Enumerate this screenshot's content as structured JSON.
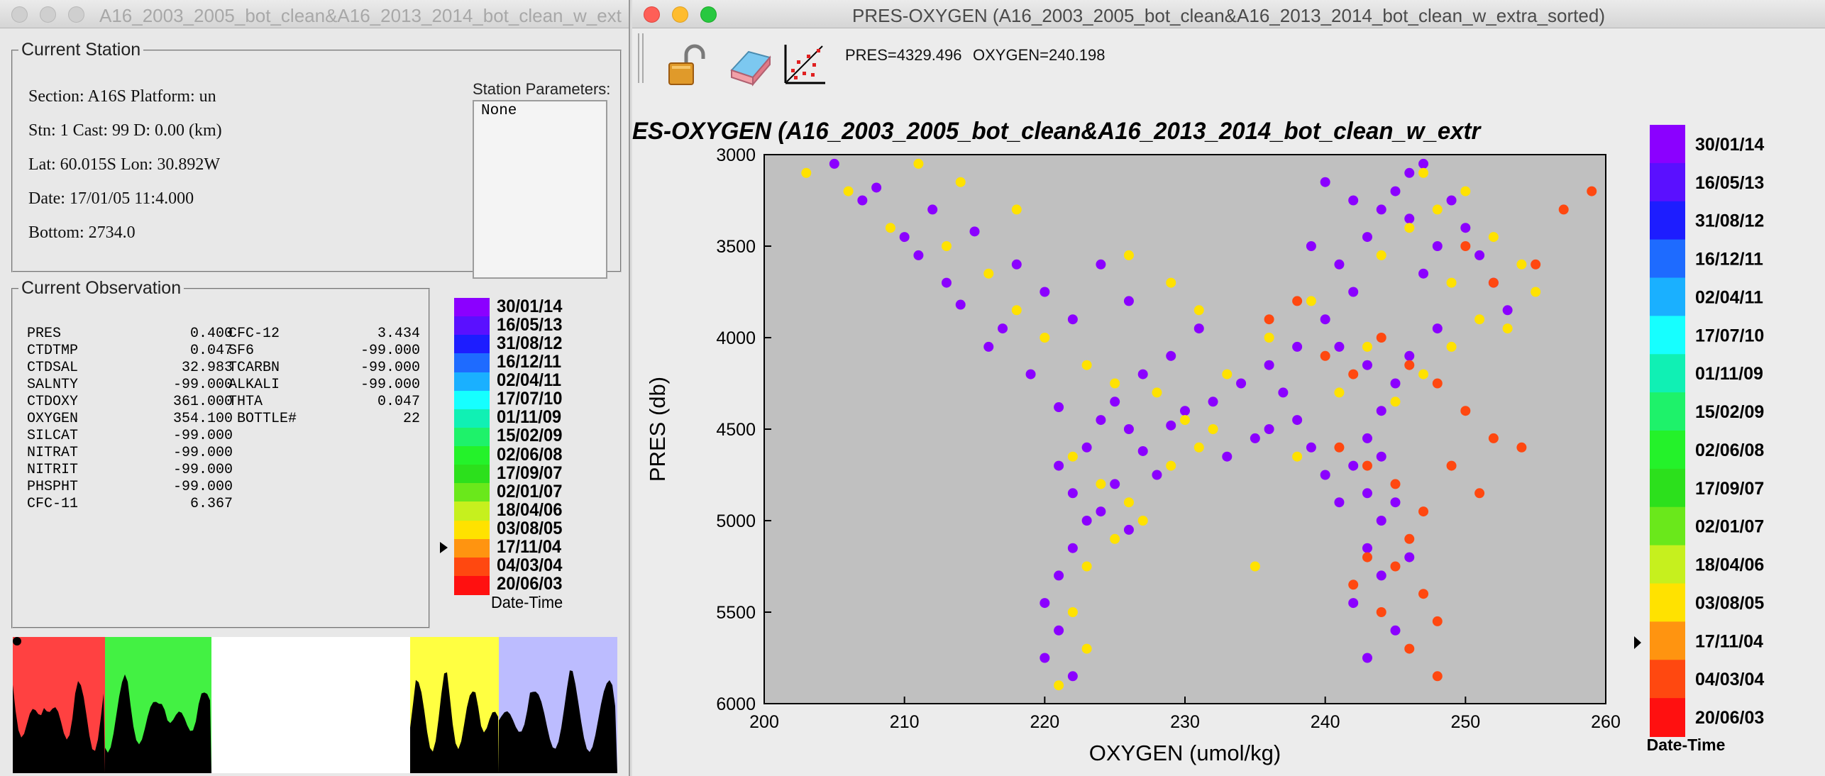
{
  "left_window": {
    "title": "A16_2003_2005_bot_clean&A16_2013_2014_bot_clean_w_ext...",
    "current_station": {
      "legend": "Current Station",
      "section_line": "Section: A16S Platform: un",
      "stn_line": "Stn: 1 Cast: 99   D: 0.00 (km)",
      "lat_line": "Lat:   60.015S Lon:    30.892W",
      "date_line": "Date: 17/01/05  11:4.000",
      "bottom_line": "Bottom: 2734.0",
      "params_label": "Station Parameters:",
      "params_value": "None"
    },
    "current_observation": {
      "legend": "Current Observation",
      "rows_left": [
        {
          "name": "PRES",
          "value": "0.400"
        },
        {
          "name": "CTDTMP",
          "value": "0.047"
        },
        {
          "name": "CTDSAL",
          "value": "32.983"
        },
        {
          "name": "SALNTY",
          "value": "-99.000"
        },
        {
          "name": "CTDOXY",
          "value": "361.000"
        },
        {
          "name": "OXYGEN",
          "value": "354.100"
        },
        {
          "name": "SILCAT",
          "value": "-99.000"
        },
        {
          "name": "NITRAT",
          "value": "-99.000"
        },
        {
          "name": "NITRIT",
          "value": "-99.000"
        },
        {
          "name": "PHSPHT",
          "value": "-99.000"
        },
        {
          "name": "CFC-11",
          "value": "6.367"
        }
      ],
      "rows_right": [
        {
          "name": "CFC-12",
          "value": "3.434"
        },
        {
          "name": "SF6",
          "value": "-99.000"
        },
        {
          "name": "TCARBN",
          "value": "-99.000"
        },
        {
          "name": "ALKALI",
          "value": "-99.000"
        },
        {
          "name": "THTA",
          "value": "0.047"
        },
        {
          "name": " BOTTLE#",
          "value": "22"
        }
      ]
    },
    "legend_caption": "Date-Time"
  },
  "right_window": {
    "title": "PRES-OXYGEN (A16_2003_2005_bot_clean&A16_2013_2014_bot_clean_w_extra_sorted)",
    "readout_pres": "PRES=4329.496",
    "readout_oxygen": "OXYGEN=240.198",
    "plot_title": "ES-OXYGEN (A16_2003_2005_bot_clean&A16_2013_2014_bot_clean_w_extr",
    "legend_caption": "Date-Time"
  },
  "colorbar": [
    {
      "label": "30/01/14",
      "color": "#8b00ff"
    },
    {
      "label": "16/05/13",
      "color": "#5a10ff"
    },
    {
      "label": "31/08/12",
      "color": "#1d1dff"
    },
    {
      "label": "16/12/11",
      "color": "#1e6bff"
    },
    {
      "label": "02/04/11",
      "color": "#1ab0ff"
    },
    {
      "label": "17/07/10",
      "color": "#16ffff"
    },
    {
      "label": "01/11/09",
      "color": "#10f0b4"
    },
    {
      "label": "15/02/09",
      "color": "#1ef26a"
    },
    {
      "label": "02/06/08",
      "color": "#24f22a"
    },
    {
      "label": "17/09/07",
      "color": "#2ce01c"
    },
    {
      "label": "02/01/07",
      "color": "#6ae81b"
    },
    {
      "label": "18/04/06",
      "color": "#c6f01e"
    },
    {
      "label": "03/08/05",
      "color": "#ffe200"
    },
    {
      "label": "17/11/04",
      "color": "#ff9410"
    },
    {
      "label": "04/03/04",
      "color": "#ff4810"
    },
    {
      "label": "20/06/03",
      "color": "#ff1010"
    }
  ],
  "chart_data": {
    "type": "scatter",
    "title": "ES-OXYGEN (A16_2003_2005_bot_clean&A16_2013_2014_bot_clean_w_extr",
    "xlabel": "OXYGEN (umol/kg)",
    "ylabel": "PRES (db)",
    "xlim": [
      200,
      260
    ],
    "ylim": [
      3000,
      6000
    ],
    "y_inverted": true,
    "xticks": [
      200,
      210,
      220,
      230,
      240,
      250,
      260
    ],
    "yticks": [
      3000,
      3500,
      4000,
      4500,
      5000,
      5500,
      6000
    ],
    "background": "#c0c0c0",
    "grid": false,
    "series": [
      {
        "color": "#8b00ff",
        "points": [
          [
            205,
            3050
          ],
          [
            208,
            3180
          ],
          [
            212,
            3300
          ],
          [
            215,
            3420
          ],
          [
            218,
            3600
          ],
          [
            220,
            3750
          ],
          [
            222,
            3900
          ],
          [
            214,
            3820
          ],
          [
            216,
            4050
          ],
          [
            219,
            4200
          ],
          [
            221,
            4380
          ],
          [
            224,
            4450
          ],
          [
            226,
            4500
          ],
          [
            227,
            4620
          ],
          [
            229,
            4480
          ],
          [
            230,
            4400
          ],
          [
            232,
            4350
          ],
          [
            234,
            4250
          ],
          [
            236,
            4150
          ],
          [
            238,
            4050
          ],
          [
            240,
            3900
          ],
          [
            242,
            3750
          ],
          [
            241,
            3600
          ],
          [
            243,
            3450
          ],
          [
            244,
            3300
          ],
          [
            245,
            3200
          ],
          [
            246,
            3100
          ],
          [
            247,
            3050
          ],
          [
            249,
            3250
          ],
          [
            250,
            3400
          ],
          [
            251,
            3550
          ],
          [
            252,
            3700
          ],
          [
            253,
            3850
          ],
          [
            248,
            3950
          ],
          [
            246,
            4100
          ],
          [
            245,
            4250
          ],
          [
            244,
            4400
          ],
          [
            243,
            4550
          ],
          [
            242,
            4700
          ],
          [
            243,
            4850
          ],
          [
            244,
            5000
          ],
          [
            243,
            5150
          ],
          [
            244,
            5300
          ],
          [
            242,
            5450
          ],
          [
            245,
            5600
          ],
          [
            243,
            5750
          ],
          [
            221,
            4700
          ],
          [
            222,
            4850
          ],
          [
            223,
            5000
          ],
          [
            222,
            5150
          ],
          [
            221,
            5300
          ],
          [
            220,
            5450
          ],
          [
            221,
            5600
          ],
          [
            220,
            5750
          ],
          [
            222,
            5850
          ],
          [
            224,
            4950
          ],
          [
            225,
            4800
          ],
          [
            226,
            5050
          ],
          [
            228,
            4750
          ],
          [
            223,
            4600
          ],
          [
            236,
            4500
          ],
          [
            238,
            4450
          ],
          [
            239,
            4600
          ],
          [
            240,
            4750
          ],
          [
            241,
            4900
          ],
          [
            237,
            4300
          ],
          [
            235,
            4550
          ],
          [
            233,
            4650
          ],
          [
            247,
            3650
          ],
          [
            248,
            3500
          ],
          [
            246,
            3350
          ],
          [
            242,
            3250
          ],
          [
            240,
            3150
          ],
          [
            239,
            3500
          ],
          [
            241,
            4050
          ],
          [
            243,
            4150
          ],
          [
            244,
            4650
          ],
          [
            245,
            4900
          ],
          [
            246,
            5200
          ],
          [
            211,
            3550
          ],
          [
            213,
            3700
          ],
          [
            217,
            3950
          ],
          [
            210,
            3450
          ],
          [
            207,
            3250
          ],
          [
            225,
            4350
          ],
          [
            227,
            4200
          ],
          [
            229,
            4100
          ],
          [
            231,
            3950
          ],
          [
            226,
            3800
          ],
          [
            224,
            3600
          ]
        ]
      },
      {
        "color": "#ffe200",
        "points": [
          [
            203,
            3100
          ],
          [
            206,
            3200
          ],
          [
            209,
            3400
          ],
          [
            213,
            3500
          ],
          [
            216,
            3650
          ],
          [
            218,
            3850
          ],
          [
            220,
            4000
          ],
          [
            223,
            4150
          ],
          [
            225,
            4250
          ],
          [
            228,
            4300
          ],
          [
            230,
            4450
          ],
          [
            232,
            4500
          ],
          [
            222,
            4650
          ],
          [
            224,
            4800
          ],
          [
            226,
            4900
          ],
          [
            225,
            5100
          ],
          [
            223,
            5250
          ],
          [
            222,
            5500
          ],
          [
            223,
            5700
          ],
          [
            221,
            5900
          ],
          [
            227,
            5000
          ],
          [
            229,
            4700
          ],
          [
            231,
            4600
          ],
          [
            233,
            4200
          ],
          [
            236,
            4000
          ],
          [
            239,
            3800
          ],
          [
            244,
            3550
          ],
          [
            246,
            3400
          ],
          [
            248,
            3300
          ],
          [
            250,
            3200
          ],
          [
            252,
            3450
          ],
          [
            254,
            3600
          ],
          [
            255,
            3750
          ],
          [
            253,
            3950
          ],
          [
            249,
            4050
          ],
          [
            247,
            4200
          ],
          [
            245,
            4350
          ],
          [
            243,
            4050
          ],
          [
            241,
            4300
          ],
          [
            238,
            4650
          ],
          [
            218,
            3300
          ],
          [
            214,
            3150
          ],
          [
            211,
            3050
          ],
          [
            226,
            3550
          ],
          [
            229,
            3700
          ],
          [
            231,
            3850
          ],
          [
            235,
            5250
          ],
          [
            247,
            3100
          ],
          [
            249,
            3700
          ],
          [
            251,
            3900
          ]
        ]
      },
      {
        "color": "#ff4810",
        "points": [
          [
            236,
            3900
          ],
          [
            238,
            3800
          ],
          [
            240,
            4100
          ],
          [
            242,
            4200
          ],
          [
            244,
            4000
          ],
          [
            246,
            4150
          ],
          [
            248,
            4250
          ],
          [
            250,
            4400
          ],
          [
            252,
            4550
          ],
          [
            254,
            4600
          ],
          [
            241,
            4600
          ],
          [
            243,
            4700
          ],
          [
            245,
            4800
          ],
          [
            247,
            4950
          ],
          [
            246,
            5100
          ],
          [
            245,
            5250
          ],
          [
            247,
            5400
          ],
          [
            248,
            5550
          ],
          [
            246,
            5700
          ],
          [
            248,
            5850
          ],
          [
            250,
            3500
          ],
          [
            252,
            3700
          ],
          [
            255,
            3600
          ],
          [
            257,
            3300
          ],
          [
            259,
            3200
          ],
          [
            243,
            5200
          ],
          [
            242,
            5350
          ],
          [
            244,
            5500
          ],
          [
            249,
            4700
          ],
          [
            251,
            4850
          ]
        ]
      }
    ]
  }
}
